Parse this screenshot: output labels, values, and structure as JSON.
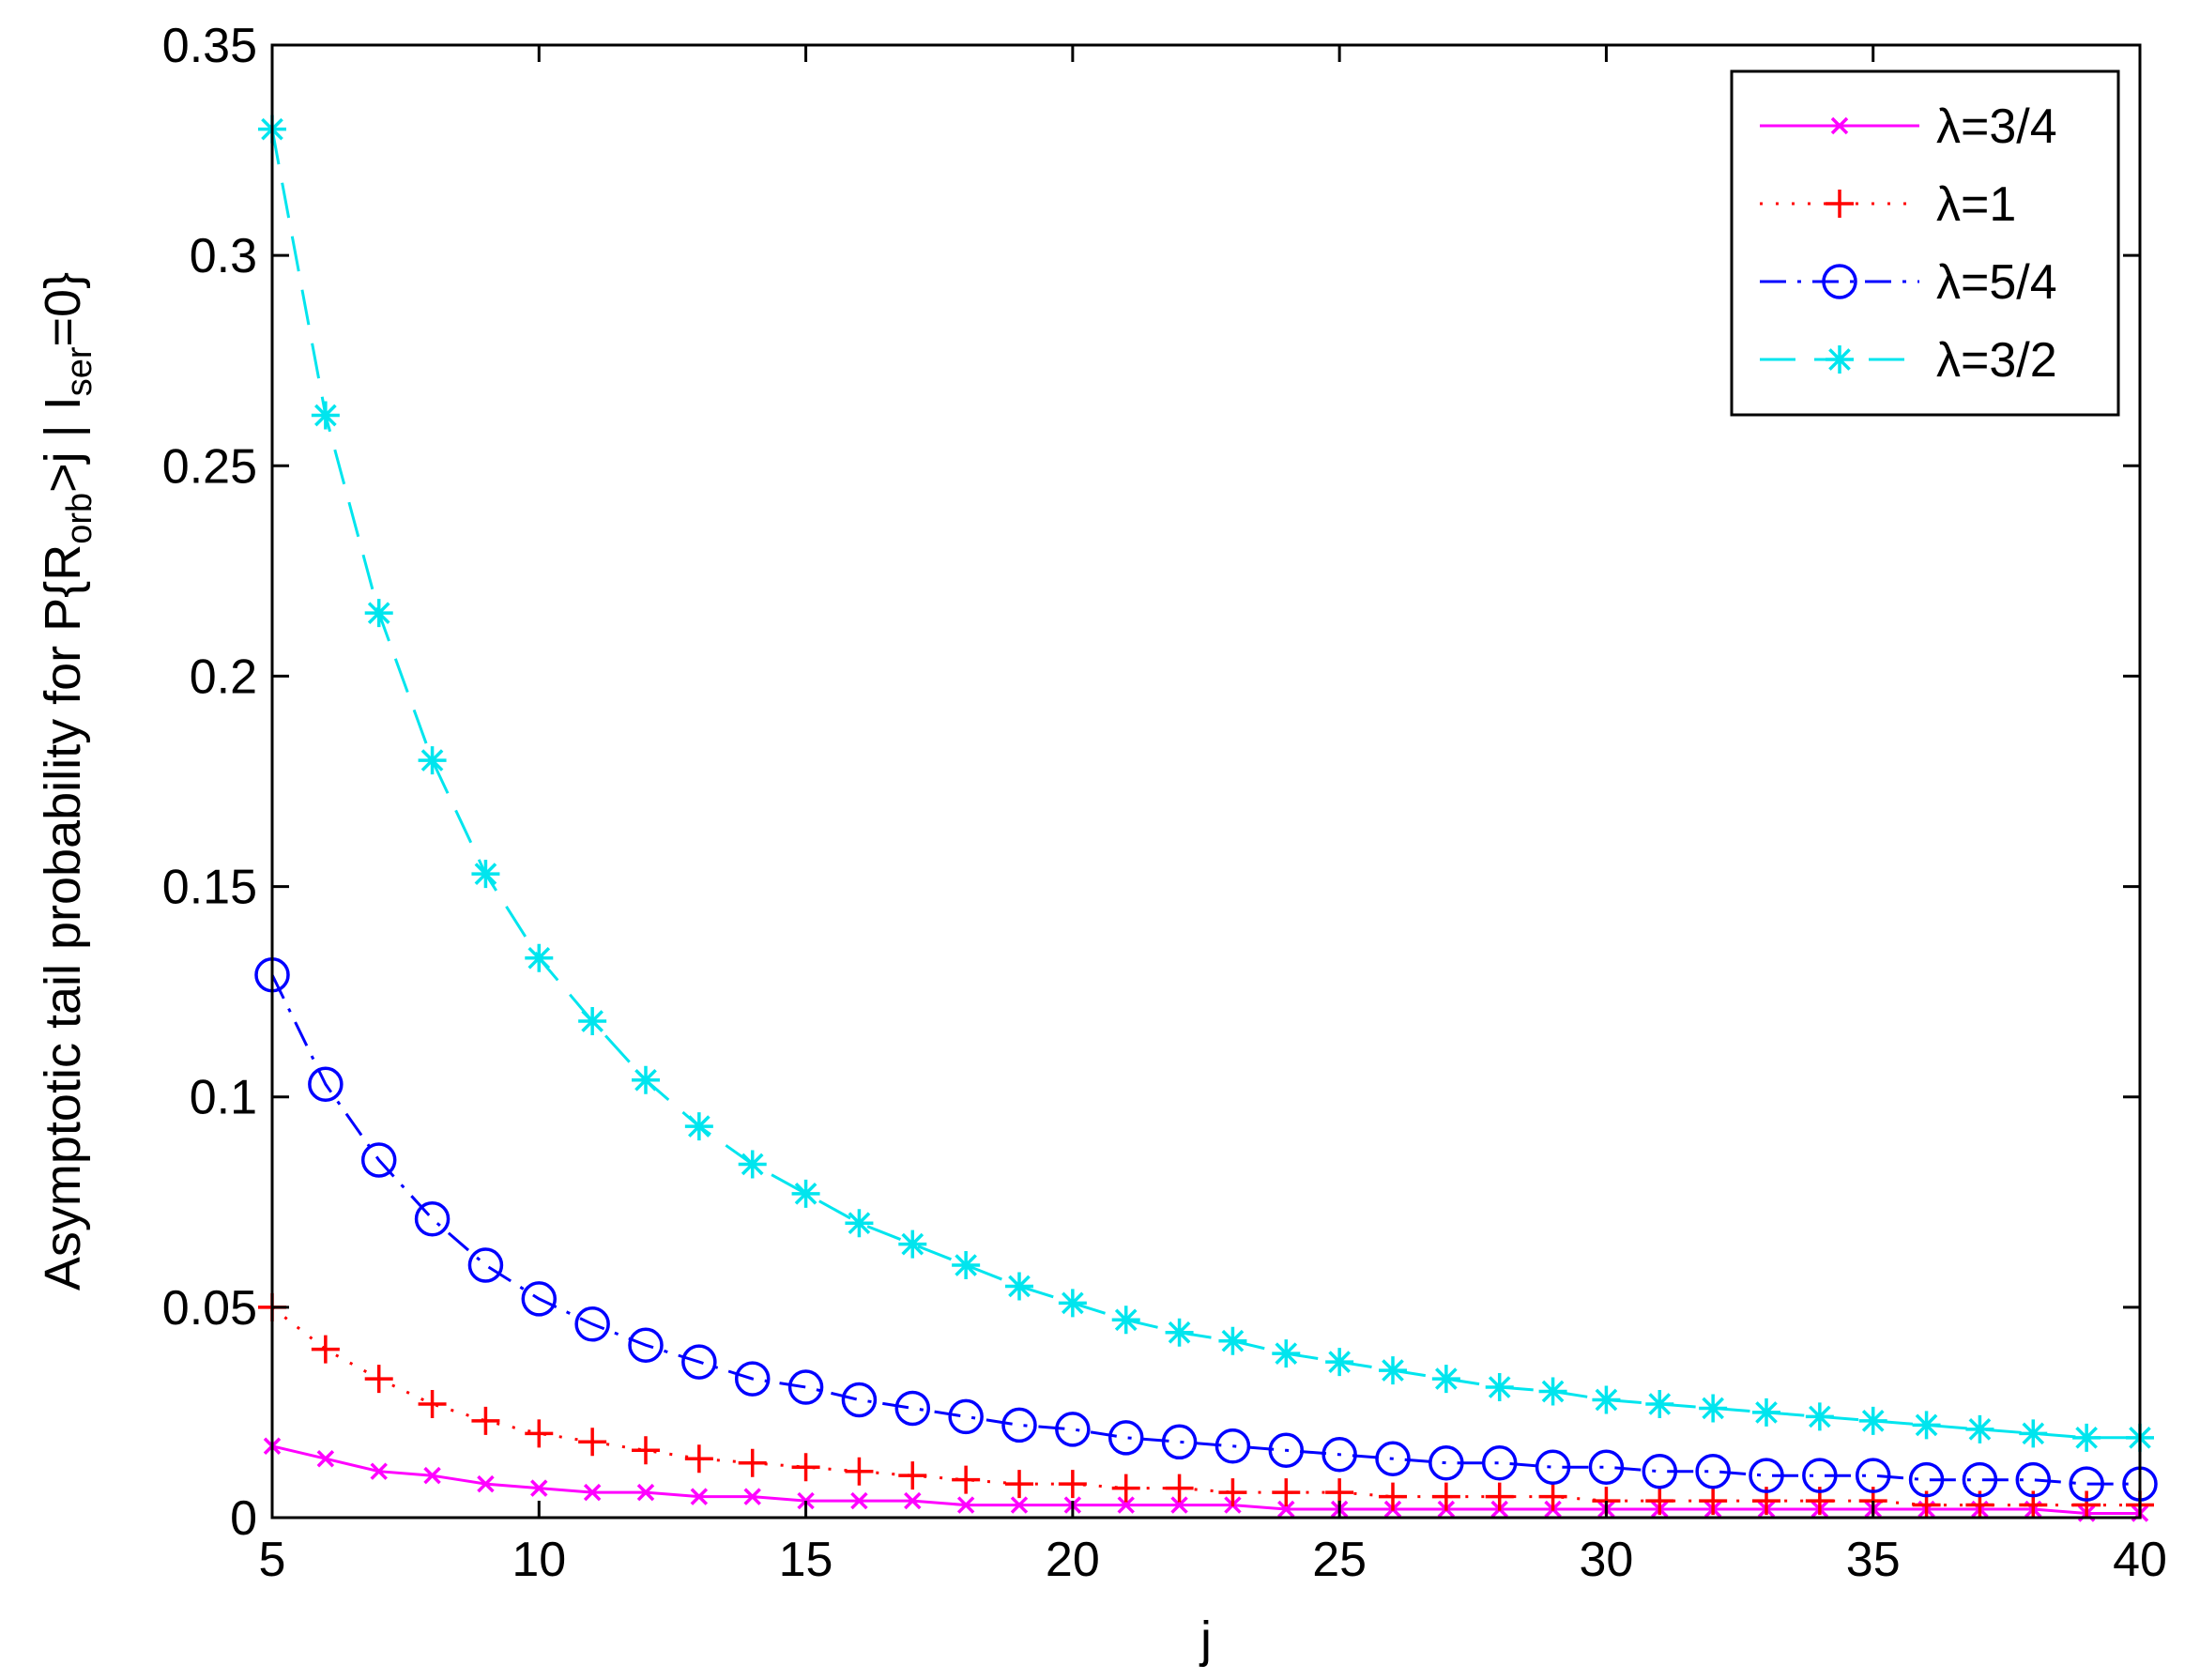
{
  "chart_data": {
    "type": "line",
    "xlabel": "j",
    "ylabel": {
      "prefix": "Asymptotic tail probability for P{R",
      "sub1": "orb",
      "middle": ">j | I",
      "sub2": "ser",
      "suffix": "=0}"
    },
    "xlim": [
      5,
      40
    ],
    "ylim": [
      0,
      0.35
    ],
    "xticks": [
      5,
      10,
      15,
      20,
      25,
      30,
      35,
      40
    ],
    "yticks": [
      0,
      0.05,
      0.1,
      0.15,
      0.2,
      0.25,
      0.3,
      0.35
    ],
    "xtick_labels": [
      "5",
      "10",
      "15",
      "20",
      "25",
      "30",
      "35",
      "40"
    ],
    "ytick_labels": [
      "0",
      "0.05",
      "0.1",
      "0.15",
      "0.2",
      "0.25",
      "0.3",
      "0.35"
    ],
    "grid": false,
    "legend_position": "top-right",
    "x": [
      5,
      6,
      7,
      8,
      9,
      10,
      11,
      12,
      13,
      14,
      15,
      16,
      17,
      18,
      19,
      20,
      21,
      22,
      23,
      24,
      25,
      26,
      27,
      28,
      29,
      30,
      31,
      32,
      33,
      34,
      35,
      36,
      37,
      38,
      39,
      40
    ],
    "series": [
      {
        "name": "λ=3/4",
        "color": "#ff00ff",
        "line_style": "solid",
        "marker": "x",
        "values": [
          0.017,
          0.014,
          0.011,
          0.01,
          0.008,
          0.007,
          0.006,
          0.006,
          0.005,
          0.005,
          0.004,
          0.004,
          0.004,
          0.003,
          0.003,
          0.003,
          0.003,
          0.003,
          0.003,
          0.002,
          0.002,
          0.002,
          0.002,
          0.002,
          0.002,
          0.002,
          0.002,
          0.002,
          0.002,
          0.002,
          0.002,
          0.002,
          0.002,
          0.002,
          0.001,
          0.001
        ]
      },
      {
        "name": "λ=1",
        "color": "#ff0000",
        "line_style": "dotted",
        "marker": "+",
        "values": [
          0.05,
          0.04,
          0.033,
          0.027,
          0.023,
          0.02,
          0.018,
          0.016,
          0.014,
          0.013,
          0.012,
          0.011,
          0.01,
          0.009,
          0.008,
          0.008,
          0.007,
          0.007,
          0.006,
          0.006,
          0.006,
          0.005,
          0.005,
          0.005,
          0.005,
          0.004,
          0.004,
          0.004,
          0.004,
          0.004,
          0.004,
          0.003,
          0.003,
          0.003,
          0.003,
          0.003
        ]
      },
      {
        "name": "λ=5/4",
        "color": "#0000ff",
        "line_style": "dashdot",
        "marker": "o",
        "values": [
          0.129,
          0.103,
          0.085,
          0.071,
          0.06,
          0.052,
          0.046,
          0.041,
          0.037,
          0.033,
          0.031,
          0.028,
          0.026,
          0.024,
          0.022,
          0.021,
          0.019,
          0.018,
          0.017,
          0.016,
          0.015,
          0.014,
          0.013,
          0.013,
          0.012,
          0.012,
          0.011,
          0.011,
          0.01,
          0.01,
          0.01,
          0.009,
          0.009,
          0.009,
          0.008,
          0.008
        ]
      },
      {
        "name": "λ=3/2",
        "color": "#00e5ee",
        "line_style": "dashed",
        "marker": "*",
        "values": [
          0.33,
          0.262,
          0.215,
          0.18,
          0.153,
          0.133,
          0.118,
          0.104,
          0.093,
          0.084,
          0.077,
          0.07,
          0.065,
          0.06,
          0.055,
          0.051,
          0.047,
          0.044,
          0.042,
          0.039,
          0.037,
          0.035,
          0.033,
          0.031,
          0.03,
          0.028,
          0.027,
          0.026,
          0.025,
          0.024,
          0.023,
          0.022,
          0.021,
          0.02,
          0.019,
          0.019
        ]
      }
    ]
  }
}
